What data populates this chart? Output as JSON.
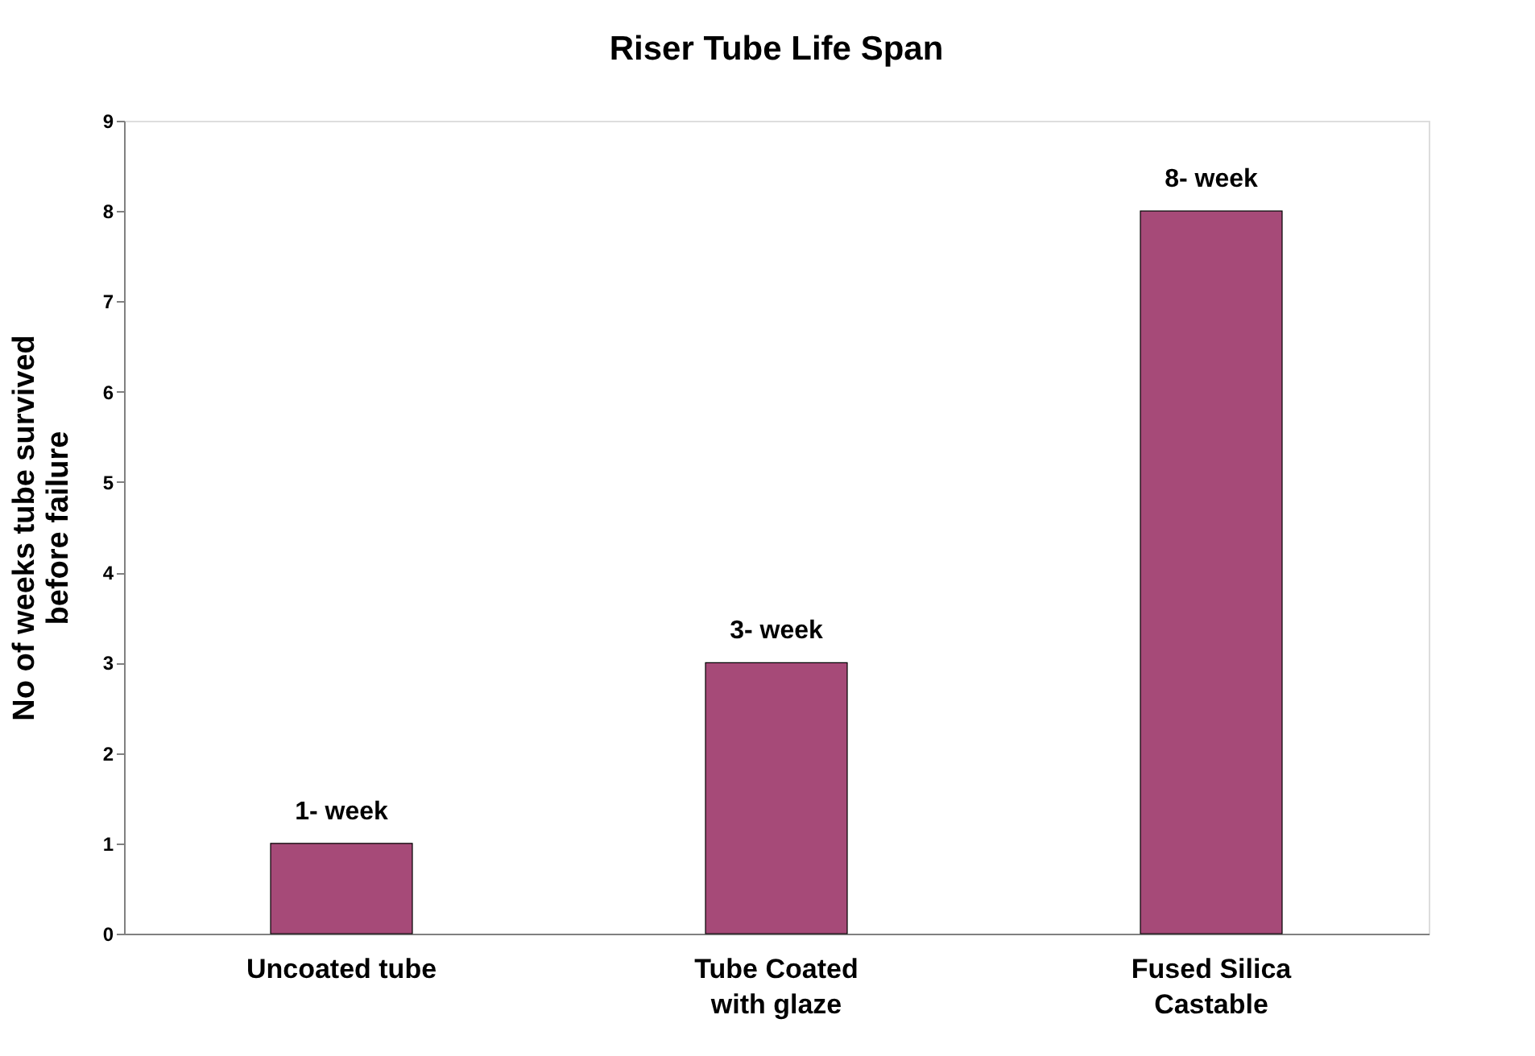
{
  "chart_data": {
    "type": "bar",
    "title": "Riser Tube Life Span",
    "ylabel": "No of weeks tube survived\nbefore failure",
    "categories": [
      "Uncoated tube",
      "Tube Coated\nwith glaze",
      "Fused Silica\nCastable"
    ],
    "values": [
      1,
      3,
      8
    ],
    "color": "#a64a78",
    "value_labels": [
      "1- week",
      "3- week",
      "8- week"
    ],
    "ylim": [
      0,
      9
    ],
    "yticks": [
      0,
      1,
      2,
      3,
      4,
      5,
      6,
      7,
      8,
      9
    ],
    "grid": false
  }
}
